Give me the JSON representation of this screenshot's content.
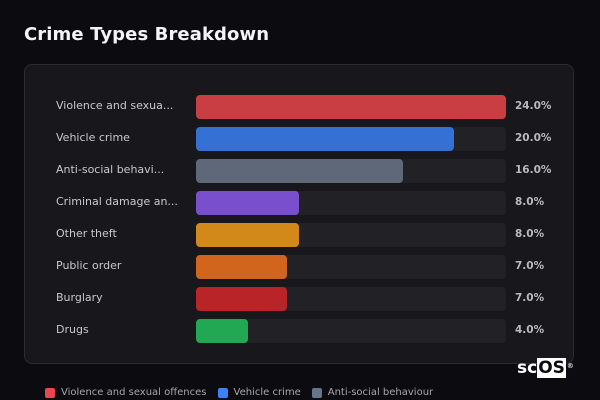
{
  "header": {
    "title": "Crime Types Breakdown"
  },
  "chart_data": {
    "type": "bar",
    "orientation": "horizontal",
    "title": "Crime Types Breakdown",
    "xlabel": "",
    "ylabel": "",
    "xlim": [
      0,
      24
    ],
    "grid": false,
    "legend_position": "bottom",
    "categories": [
      "Violence and sexual offences",
      "Vehicle crime",
      "Anti-social behaviour",
      "Criminal damage and arson",
      "Other theft",
      "Public order",
      "Burglary",
      "Drugs"
    ],
    "display_labels": [
      "Violence and sexua...",
      "Vehicle crime",
      "Anti-social behavi...",
      "Criminal damage an...",
      "Other theft",
      "Public order",
      "Burglary",
      "Drugs"
    ],
    "values": [
      24.0,
      20.0,
      16.0,
      8.0,
      8.0,
      7.0,
      7.0,
      4.0
    ],
    "value_labels": [
      "24.0%",
      "20.0%",
      "16.0%",
      "8.0%",
      "8.0%",
      "7.0%",
      "7.0%",
      "4.0%"
    ],
    "colors": [
      "#c83e42",
      "#3570d4",
      "#5f6878",
      "#7a4fce",
      "#d2891a",
      "#d2651e",
      "#b82428",
      "#22a853"
    ]
  },
  "rows": [
    {
      "label": "Violence and sexua...",
      "value": "24.0%",
      "pct": 100,
      "color": "#c83e42"
    },
    {
      "label": "Vehicle crime",
      "value": "20.0%",
      "pct": 83.3,
      "color": "#3570d4"
    },
    {
      "label": "Anti-social behavi...",
      "value": "16.0%",
      "pct": 66.7,
      "color": "#5f6878"
    },
    {
      "label": "Criminal damage an...",
      "value": "8.0%",
      "pct": 33.3,
      "color": "#7a4fce"
    },
    {
      "label": "Other theft",
      "value": "8.0%",
      "pct": 33.3,
      "color": "#d2891a"
    },
    {
      "label": "Public order",
      "value": "7.0%",
      "pct": 29.2,
      "color": "#d2651e"
    },
    {
      "label": "Burglary",
      "value": "7.0%",
      "pct": 29.2,
      "color": "#b82428"
    },
    {
      "label": "Drugs",
      "value": "4.0%",
      "pct": 16.7,
      "color": "#22a853"
    }
  ],
  "legend": [
    {
      "label": "Violence and sexual offences",
      "color": "#e5484d"
    },
    {
      "label": "Vehicle crime",
      "color": "#3b82f6"
    },
    {
      "label": "Anti-social behaviour",
      "color": "#64748b"
    }
  ],
  "logo": {
    "left": "sc",
    "right": "OS",
    "mark": "®"
  }
}
